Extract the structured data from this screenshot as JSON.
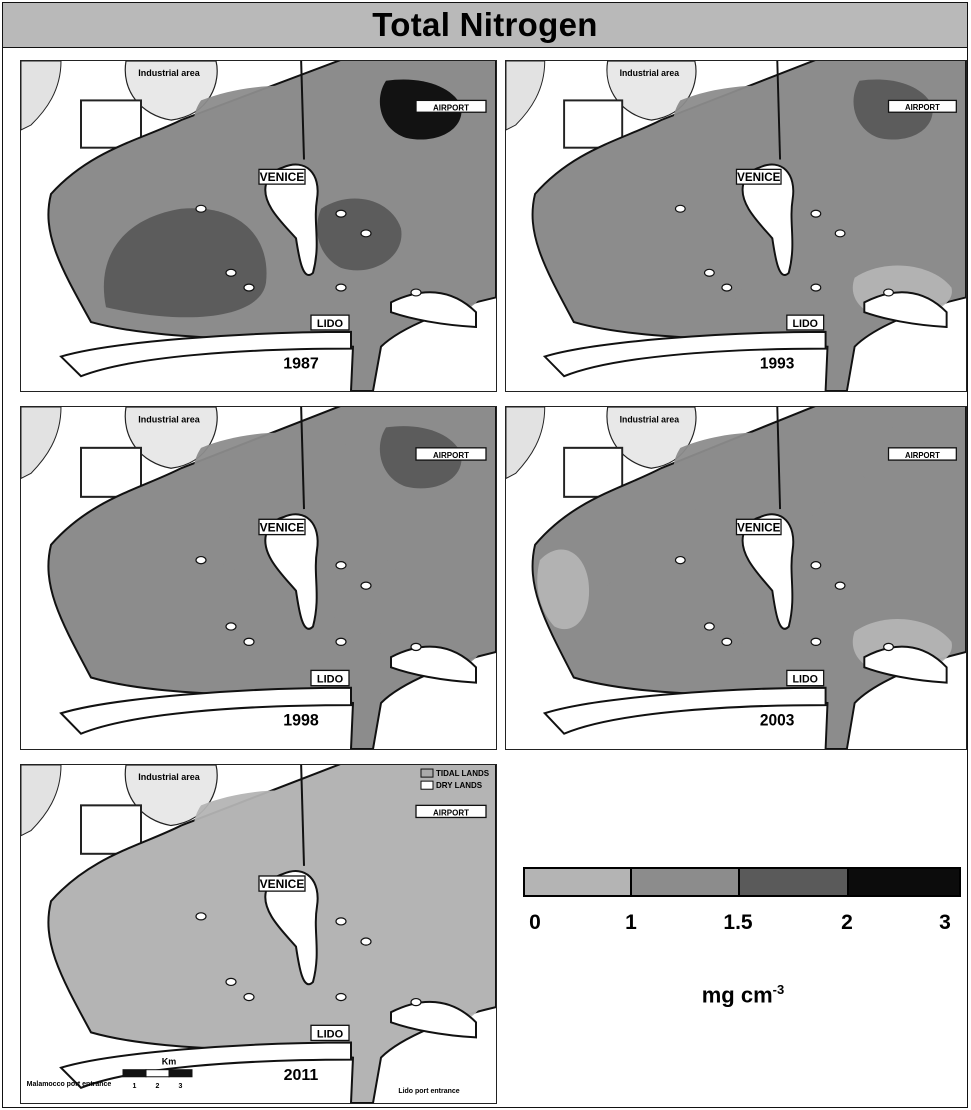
{
  "title": "Total Nitrogen",
  "labels": {
    "industrial_area": "Industrial area",
    "airport": "AIRPORT",
    "venice": "VENICE",
    "lido": "LIDO",
    "malamocco": "Malamocco port entrance",
    "lido_port": "Lido port entrance"
  },
  "panels": [
    {
      "year": "1987",
      "class_levels": {
        "southwest_basin": 3,
        "central_north": 2,
        "northeast_corner": 4,
        "east_of_venice": 3,
        "south_channel": 2,
        "west_edge": 2
      }
    },
    {
      "year": "1993",
      "class_levels": {
        "southwest_basin": 2,
        "central_north": 2,
        "northeast_corner": 3,
        "east_of_venice": 2,
        "south_channel": 1,
        "west_edge": 2
      }
    },
    {
      "year": "1998",
      "class_levels": {
        "southwest_basin": 2,
        "central_north": 2,
        "northeast_corner": 3,
        "east_of_venice": 2,
        "south_channel": 2,
        "west_edge": 2
      }
    },
    {
      "year": "2003",
      "class_levels": {
        "southwest_basin": 2,
        "central_north": 2,
        "northeast_corner": 2,
        "east_of_venice": 2,
        "south_channel": 1,
        "west_edge": 1
      }
    },
    {
      "year": "2011",
      "class_levels": {
        "southwest_basin": 1,
        "central_north": 1,
        "northeast_corner": 1,
        "east_of_venice": 1,
        "south_channel": 1,
        "west_edge": 1
      }
    }
  ],
  "map_legend": {
    "tidal_lands": "TIDAL LANDS",
    "dry_lands": "DRY LANDS",
    "scale_title": "Km",
    "scale_ticks": [
      "1",
      "2",
      "3"
    ]
  },
  "color_legend": {
    "classes": [
      {
        "range": "0-1",
        "color": "#b4b4b4"
      },
      {
        "range": "1-1.5",
        "color": "#8c8c8c"
      },
      {
        "range": "1.5-2",
        "color": "#5a5a5a"
      },
      {
        "range": "2-3",
        "color": "#0c0c0c"
      }
    ],
    "ticks": [
      "0",
      "1",
      "1.5",
      "2",
      "3"
    ],
    "unit": "mg cm",
    "unit_exponent": "-3"
  }
}
